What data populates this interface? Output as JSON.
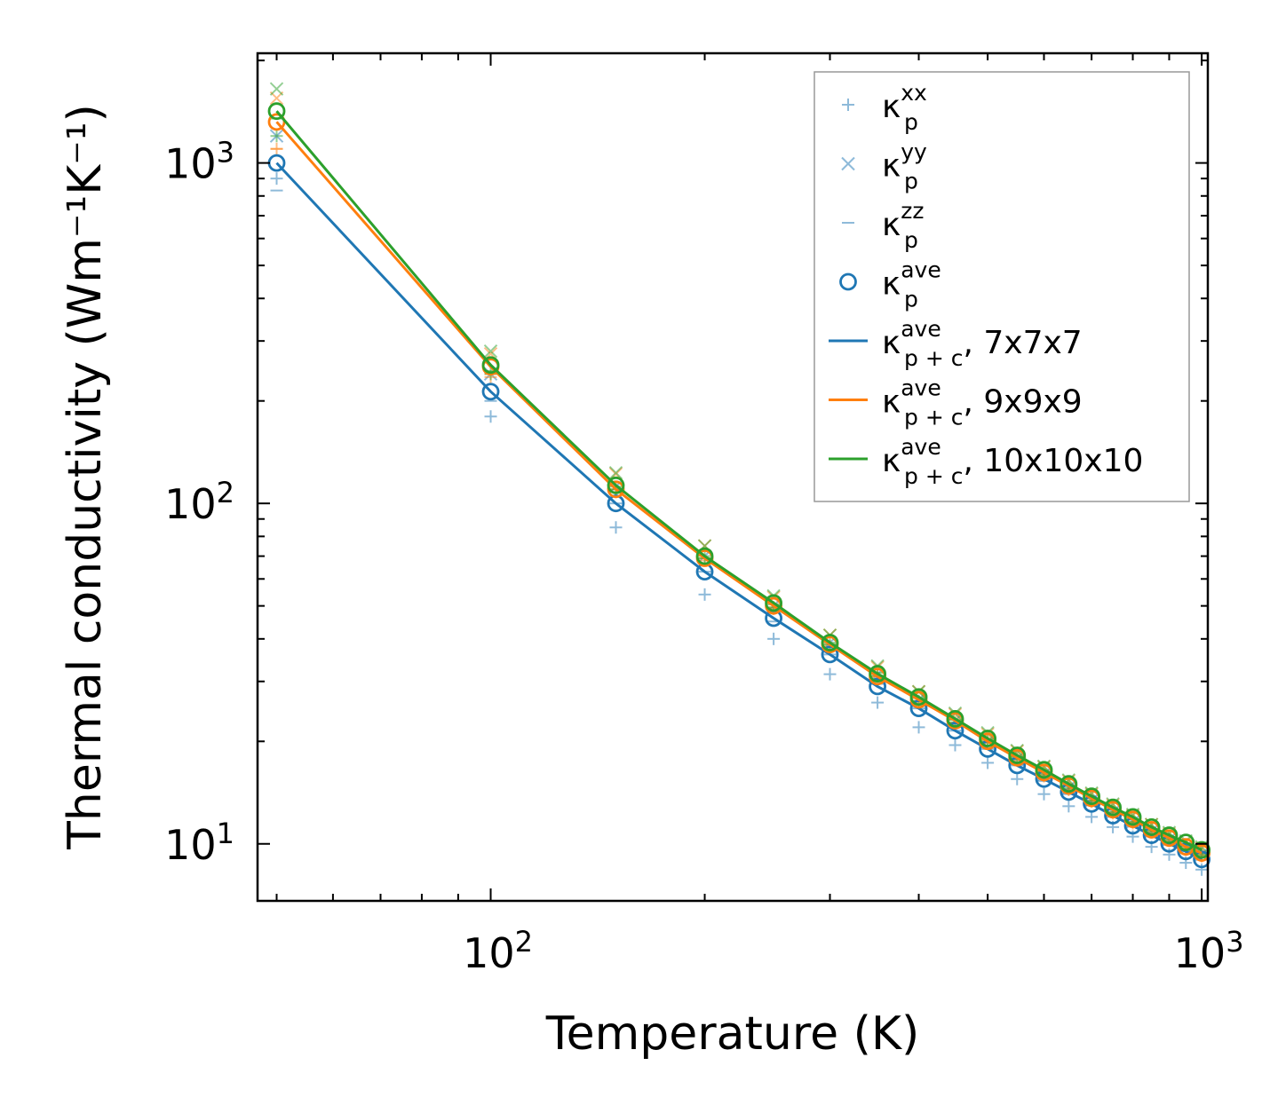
{
  "chart_data": {
    "type": "line",
    "xscale": "log",
    "yscale": "log",
    "xlabel": "Temperature (K)",
    "ylabel": "Thermal conductivity (Wm⁻¹K⁻¹)",
    "xlim": [
      47,
      1020
    ],
    "ylim": [
      6.8,
      2100
    ],
    "x_ticks": [
      {
        "base": "10",
        "exp": "2",
        "value": 100
      },
      {
        "base": "10",
        "exp": "3",
        "value": 1000
      }
    ],
    "y_ticks": [
      {
        "base": "10",
        "exp": "1",
        "value": 10
      },
      {
        "base": "10",
        "exp": "2",
        "value": 100
      },
      {
        "base": "10",
        "exp": "3",
        "value": 1000
      }
    ],
    "x": [
      50,
      100,
      150,
      200,
      250,
      300,
      350,
      400,
      450,
      500,
      550,
      600,
      650,
      700,
      750,
      800,
      850,
      900,
      950,
      1000
    ],
    "colors": {
      "blue": "#1f77b4",
      "orange": "#ff7f0e",
      "green": "#2ca02c"
    },
    "scatter_series": [
      {
        "name": "7x7x7 kxx",
        "marker": "plus",
        "color": "#1f77b4",
        "values": [
          900,
          180,
          85,
          54,
          40,
          31.5,
          26,
          22,
          19.5,
          17.3,
          15.5,
          14,
          12.9,
          12,
          11.2,
          10.5,
          9.8,
          9.3,
          8.8,
          8.4
        ]
      },
      {
        "name": "7x7x7 kyy",
        "marker": "x",
        "color": "#1f77b4",
        "values": [
          1200,
          240,
          112,
          70,
          50,
          39,
          31.5,
          26.5,
          23,
          20,
          17.8,
          16,
          14.6,
          13.4,
          12.4,
          11.6,
          10.9,
          10.3,
          9.8,
          9.3
        ]
      },
      {
        "name": "7x7x7 kzz",
        "marker": "dash",
        "color": "#1f77b4",
        "values": [
          830,
          200,
          100,
          63,
          45,
          36,
          29.5,
          25,
          21.5,
          19,
          17,
          15.3,
          14,
          13,
          12.1,
          11.3,
          10.6,
          10.1,
          9.5,
          9.1
        ]
      },
      {
        "name": "9x9x9 kxx",
        "marker": "plus",
        "color": "#ff7f0e",
        "values": [
          1100,
          235,
          108,
          68,
          49,
          38,
          31,
          26,
          22.5,
          19.8,
          17.6,
          15.8,
          14.4,
          13.3,
          12.3,
          11.5,
          10.8,
          10.2,
          9.6,
          9.2
        ]
      },
      {
        "name": "9x9x9 kyy",
        "marker": "x",
        "color": "#ff7f0e",
        "values": [
          1550,
          275,
          122,
          75,
          53,
          41,
          33,
          28,
          24,
          21,
          18.7,
          16.8,
          15.3,
          14,
          13,
          12.1,
          11.4,
          10.7,
          10.1,
          9.7
        ]
      },
      {
        "name": "9x9x9 kzz",
        "marker": "dash",
        "color": "#ff7f0e",
        "values": [
          1100,
          240,
          110,
          69,
          49.5,
          38.5,
          31,
          26.3,
          22.7,
          20,
          17.8,
          16,
          14.5,
          13.4,
          12.4,
          11.6,
          10.9,
          10.3,
          9.7,
          9.3
        ]
      },
      {
        "name": "10x10x10 kxx",
        "marker": "plus",
        "color": "#2ca02c",
        "values": [
          1200,
          240,
          110,
          69,
          49.5,
          38.5,
          31.2,
          26.3,
          22.7,
          20,
          17.8,
          16,
          14.6,
          13.4,
          12.4,
          11.6,
          10.9,
          10.3,
          9.8,
          9.3
        ]
      },
      {
        "name": "10x10x10 kyy",
        "marker": "x",
        "color": "#2ca02c",
        "values": [
          1650,
          280,
          123,
          75,
          53.5,
          41,
          33.3,
          28,
          24.2,
          21.2,
          18.8,
          16.9,
          15.4,
          14.1,
          13.1,
          12.2,
          11.4,
          10.8,
          10.2,
          9.8
        ]
      },
      {
        "name": "10x10x10 kzz",
        "marker": "dash",
        "color": "#2ca02c",
        "values": [
          1350,
          245,
          112,
          70,
          50.5,
          39,
          31.8,
          26.8,
          23.1,
          20.3,
          18,
          16.2,
          14.8,
          13.6,
          12.6,
          11.8,
          11,
          10.4,
          9.9,
          9.4
        ]
      }
    ],
    "ave_series": [
      {
        "name": "7x7x7",
        "color": "#1f77b4",
        "values": [
          1000,
          213,
          100,
          63,
          46,
          36,
          29,
          25,
          21.5,
          19,
          17,
          15.5,
          14.2,
          13.1,
          12.1,
          11.3,
          10.6,
          10,
          9.5,
          9
        ]
      },
      {
        "name": "9x9x9",
        "color": "#ff7f0e",
        "values": [
          1320,
          252,
          110,
          69,
          50,
          38.5,
          31,
          26.5,
          23,
          20,
          17.9,
          16.2,
          14.8,
          13.6,
          12.6,
          11.8,
          11,
          10.4,
          9.8,
          9.4
        ]
      },
      {
        "name": "10x10x10",
        "color": "#2ca02c",
        "values": [
          1420,
          255,
          113,
          70,
          51,
          39,
          31.6,
          27,
          23.3,
          20.4,
          18.2,
          16.5,
          15,
          13.8,
          12.8,
          12,
          11.2,
          10.6,
          10.1,
          9.6
        ]
      }
    ],
    "legend": {
      "position": "top-right",
      "entries": [
        {
          "symbol": "plus",
          "color": "#1f77b4",
          "main": "κ",
          "sub": "p",
          "sup": "xx",
          "suffix": ""
        },
        {
          "symbol": "x",
          "color": "#1f77b4",
          "main": "κ",
          "sub": "p",
          "sup": "yy",
          "suffix": ""
        },
        {
          "symbol": "dash",
          "color": "#1f77b4",
          "main": "κ",
          "sub": "p",
          "sup": "zz",
          "suffix": ""
        },
        {
          "symbol": "circle",
          "color": "#1f77b4",
          "main": "κ",
          "sub": "p",
          "sup": "ave",
          "suffix": ""
        },
        {
          "symbol": "line",
          "color": "#1f77b4",
          "main": "κ",
          "sub": "p + c",
          "sup": "ave",
          "suffix": ", 7x7x7"
        },
        {
          "symbol": "line",
          "color": "#ff7f0e",
          "main": "κ",
          "sub": "p + c",
          "sup": "ave",
          "suffix": ", 9x9x9"
        },
        {
          "symbol": "line",
          "color": "#2ca02c",
          "main": "κ",
          "sub": "p + c",
          "sup": "ave",
          "suffix": ", 10x10x10"
        }
      ]
    }
  }
}
